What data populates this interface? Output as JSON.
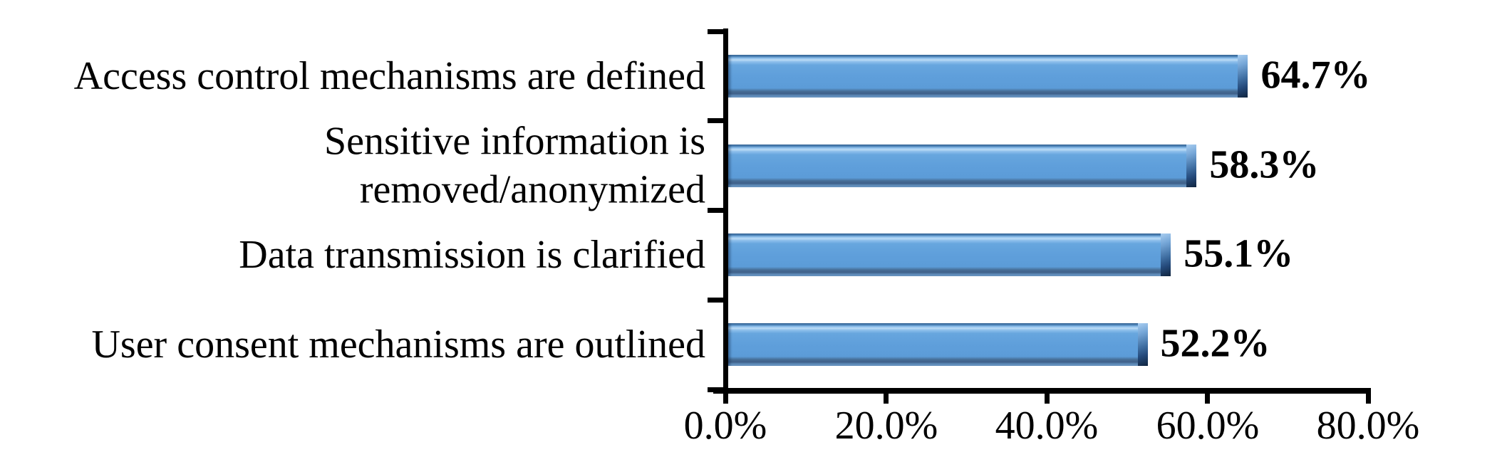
{
  "chart_data": {
    "type": "bar",
    "orientation": "horizontal",
    "categories": [
      "Access control mechanisms are defined",
      "Sensitive information is\nremoved/anonymized",
      "Data transmission is clarified",
      "User consent mechanisms are outlined"
    ],
    "values": [
      64.7,
      58.3,
      55.1,
      52.2
    ],
    "value_labels": [
      "64.7%",
      "58.3%",
      "55.1%",
      "52.2%"
    ],
    "x_ticks": [
      "0.0%",
      "20.0%",
      "40.0%",
      "60.0%",
      "80.0%"
    ],
    "xlim": [
      0,
      80
    ],
    "xlabel": "",
    "ylabel": "",
    "grid": false,
    "legend": false,
    "bar_fill_color": "#5F9FDB",
    "bar_highlight_color": "#BCDCF6",
    "bar_shadow_color": "#10253F",
    "axis_color": "#000000",
    "text_color": "#000000",
    "background_color": "#FFFFFF"
  }
}
